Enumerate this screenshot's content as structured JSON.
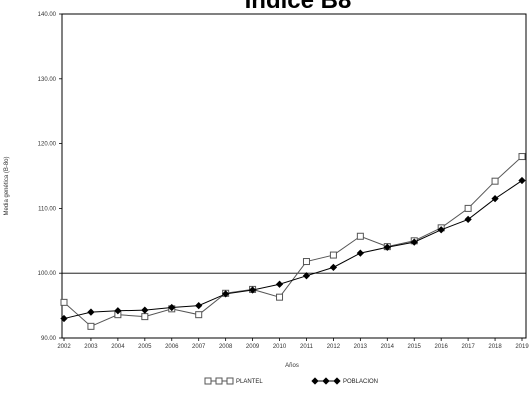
{
  "chart_data": {
    "type": "line",
    "title": "Índice B8",
    "xlabel": "Años",
    "ylabel": "Media genética (B-8o)",
    "categories": [
      "2002",
      "2003",
      "2004",
      "2005",
      "2006",
      "2007",
      "2008",
      "2009",
      "2010",
      "2011",
      "2012",
      "2013",
      "2014",
      "2015",
      "2016",
      "2017",
      "2018",
      "2019"
    ],
    "ylim": [
      90,
      140
    ],
    "yticks": [
      90,
      100,
      110,
      120,
      130,
      140
    ],
    "ytick_labels": [
      "90.00",
      "100.00",
      "110.00",
      "120.00",
      "130.00",
      "140.00"
    ],
    "reference_line": 100,
    "legend_placement": "bottom",
    "grid": false,
    "series": [
      {
        "name": "PLANTEL",
        "marker": "open-square",
        "color": "#555555",
        "values": [
          95.5,
          91.8,
          93.6,
          93.3,
          94.5,
          93.6,
          96.9,
          97.5,
          96.3,
          101.8,
          102.8,
          105.7,
          104.1,
          105.0,
          107.0,
          110.0,
          114.2,
          118.0
        ]
      },
      {
        "name": "POBLACION",
        "marker": "filled-diamond",
        "color": "#000000",
        "values": [
          93.0,
          94.0,
          94.2,
          94.3,
          94.7,
          95.0,
          96.8,
          97.4,
          98.3,
          99.6,
          100.9,
          103.1,
          104.0,
          104.8,
          106.7,
          108.3,
          111.5,
          114.3
        ]
      }
    ]
  }
}
